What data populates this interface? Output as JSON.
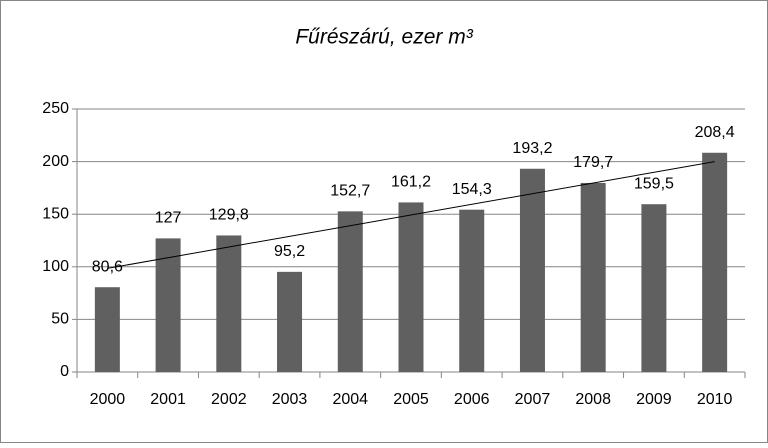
{
  "chart_data": {
    "type": "bar",
    "title": "Fűrészárú, ezer m³",
    "categories": [
      "2000",
      "2001",
      "2002",
      "2003",
      "2004",
      "2005",
      "2006",
      "2007",
      "2008",
      "2009",
      "2010"
    ],
    "values": [
      80.6,
      127,
      129.8,
      95.2,
      152.7,
      161.2,
      154.3,
      193.2,
      179.7,
      159.5,
      208.4
    ],
    "value_labels": [
      "80,6",
      "127",
      "129,8",
      "95,2",
      "152,7",
      "161,2",
      "154,3",
      "193,2",
      "179,7",
      "159,5",
      "208,4"
    ],
    "color": "#606060",
    "trendline": true,
    "ylim": [
      0,
      250
    ],
    "yticks": [
      0,
      50,
      100,
      150,
      200,
      250
    ],
    "grid": true
  }
}
